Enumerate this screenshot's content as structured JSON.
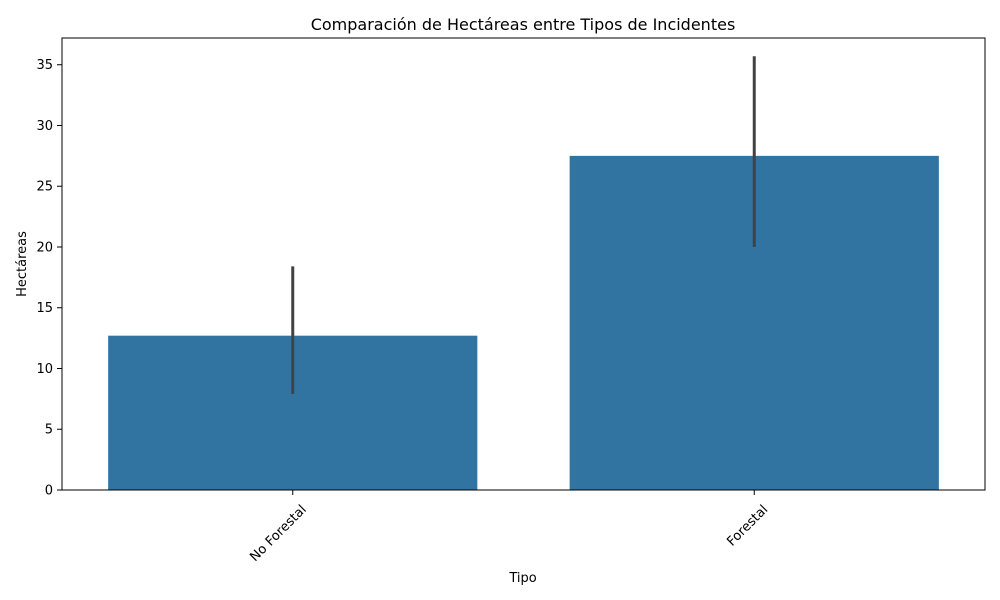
{
  "chart_data": {
    "type": "bar",
    "title": "Comparación de Hectáreas entre Tipos de Incidentes",
    "xlabel": "Tipo",
    "ylabel": "Hectáreas",
    "categories": [
      "No Forestal",
      "Forestal"
    ],
    "values": [
      12.7,
      27.5
    ],
    "error_bars": [
      {
        "low": 7.9,
        "high": 18.4
      },
      {
        "low": 20.0,
        "high": 35.7
      }
    ],
    "ylim": [
      0,
      37.2
    ],
    "yticks": [
      0,
      5,
      10,
      15,
      20,
      25,
      30,
      35
    ],
    "ytick_labels": [
      "0",
      "5",
      "10",
      "15",
      "20",
      "25",
      "30",
      "35"
    ],
    "xtick_rotation": 45,
    "grid": false,
    "colors": {
      "bar": "#3274a1",
      "error_bar": "#424242",
      "axis": "#000000"
    }
  }
}
